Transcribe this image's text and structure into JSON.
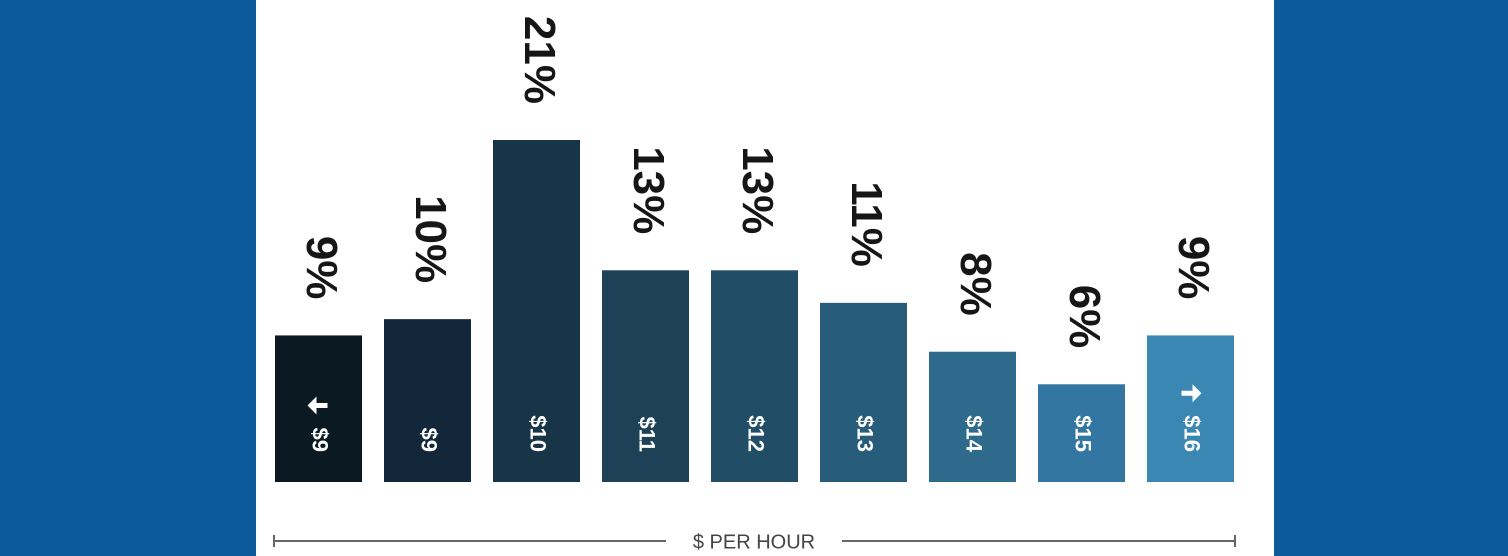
{
  "chart_data": {
    "type": "bar",
    "categories": [
      "$9",
      "$9",
      "$10",
      "$11",
      "$12",
      "$13",
      "$14",
      "$15",
      "$16"
    ],
    "values": [
      9,
      10,
      21,
      13,
      13,
      11,
      8,
      6,
      9
    ],
    "value_labels": [
      "9%",
      "10%",
      "21%",
      "13%",
      "13%",
      "11%",
      "8%",
      "6%",
      "9%"
    ],
    "colors": [
      "#0b1a22",
      "#12283a",
      "#183547",
      "#1d4257",
      "#214e66",
      "#275d7b",
      "#2d6a8c",
      "#3276a1",
      "#3a87b4"
    ],
    "xlabel": "$ PER HOUR",
    "ylim": [
      0,
      21
    ]
  }
}
